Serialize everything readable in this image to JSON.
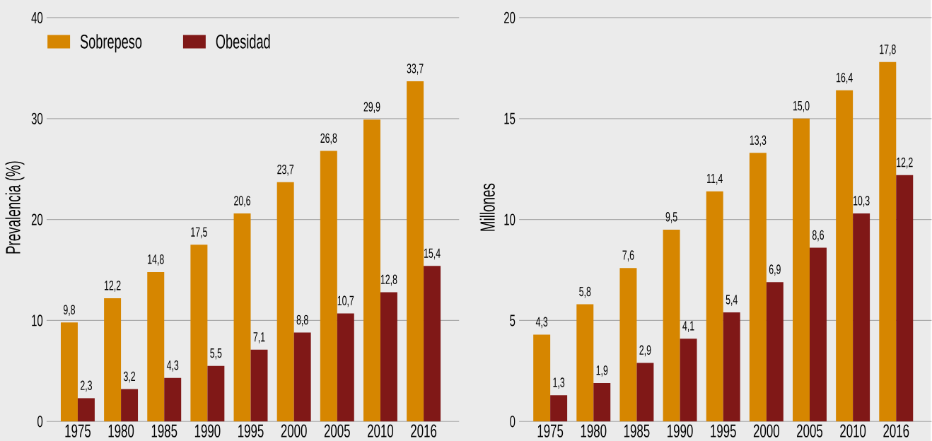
{
  "chart_data": [
    {
      "type": "bar",
      "ylabel": "Prevalencia (%)",
      "categories": [
        "1975",
        "1980",
        "1985",
        "1990",
        "1995",
        "2000",
        "2005",
        "2010",
        "2016"
      ],
      "series": [
        {
          "name": "Sobrepeso",
          "color": "#d68600",
          "values": [
            9.8,
            12.2,
            14.8,
            17.5,
            20.6,
            23.7,
            26.8,
            29.9,
            33.7
          ],
          "value_labels": [
            "9,8",
            "12,2",
            "14,8",
            "17,5",
            "20,6",
            "23,7",
            "26,8",
            "29,9",
            "33,7"
          ]
        },
        {
          "name": "Obesidad",
          "color": "#801817",
          "values": [
            2.3,
            3.2,
            4.3,
            5.5,
            7.1,
            8.8,
            10.7,
            12.8,
            15.4
          ],
          "value_labels": [
            "2,3",
            "3,2",
            "4,3",
            "5,5",
            "7,1",
            "8,8",
            "10,7",
            "12,8",
            "15,4"
          ]
        }
      ],
      "ylim": [
        0,
        40
      ],
      "yticks": [
        0,
        10,
        20,
        30,
        40
      ],
      "grid": "y",
      "legend": "top left"
    },
    {
      "type": "bar",
      "ylabel": "Millones",
      "categories": [
        "1975",
        "1980",
        "1985",
        "1990",
        "1995",
        "2000",
        "2005",
        "2010",
        "2016"
      ],
      "series": [
        {
          "color": "#d68600",
          "values": [
            4.3,
            5.8,
            7.6,
            9.5,
            11.4,
            13.3,
            15.0,
            16.4,
            17.8
          ],
          "value_labels": [
            "4,3",
            "5,8",
            "7,6",
            "9,5",
            "11,4",
            "13,3",
            "15,0",
            "16,4",
            "17,8"
          ]
        },
        {
          "color": "#801817",
          "values": [
            1.3,
            1.9,
            2.9,
            4.1,
            5.4,
            6.9,
            8.6,
            10.3,
            12.2
          ],
          "value_labels": [
            "1,3",
            "1,9",
            "2,9",
            "4,1",
            "5,4",
            "6,9",
            "8,6",
            "10,3",
            "12,2"
          ]
        }
      ],
      "ylim": [
        0,
        20
      ],
      "yticks": [
        0,
        5,
        10,
        15,
        20
      ],
      "grid": "y"
    }
  ]
}
